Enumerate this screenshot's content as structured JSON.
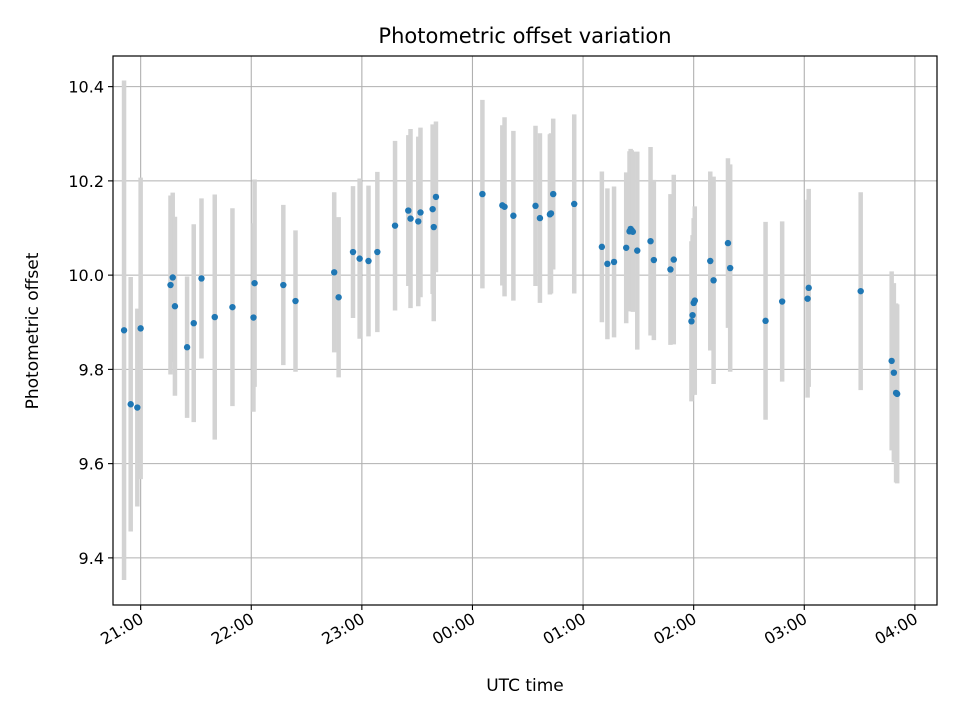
{
  "chart_data": {
    "type": "scatter",
    "title": "Photometric offset variation",
    "xlabel": "UTC time",
    "ylabel": "Photometric offset",
    "grid": true,
    "legend": "none",
    "xlim_hours": [
      -3.25,
      4.2
    ],
    "ylim": [
      9.3,
      10.465
    ],
    "x_ticks": [
      {
        "hour": -3,
        "label": "21:00"
      },
      {
        "hour": -2,
        "label": "22:00"
      },
      {
        "hour": -1,
        "label": "23:00"
      },
      {
        "hour": 0,
        "label": "00:00"
      },
      {
        "hour": 1,
        "label": "01:00"
      },
      {
        "hour": 2,
        "label": "02:00"
      },
      {
        "hour": 3,
        "label": "03:00"
      },
      {
        "hour": 4,
        "label": "04:00"
      }
    ],
    "y_ticks": [
      {
        "value": 9.4,
        "label": "9.4"
      },
      {
        "value": 9.6,
        "label": "9.6"
      },
      {
        "value": 9.8,
        "label": "9.8"
      },
      {
        "value": 10.0,
        "label": "10.0"
      },
      {
        "value": 10.2,
        "label": "10.2"
      },
      {
        "value": 10.4,
        "label": "10.4"
      }
    ],
    "colors": {
      "point": "#1f77b4",
      "errorbar": "#d3d3d3",
      "grid": "#b0b0b0"
    },
    "x_units": "hours relative to 00:00 UTC (negative = previous evening)",
    "points": [
      {
        "x": -3.15,
        "y": 9.883,
        "err": 0.53
      },
      {
        "x": -3.09,
        "y": 9.726,
        "err": 0.27
      },
      {
        "x": -3.03,
        "y": 9.719,
        "err": 0.21
      },
      {
        "x": -3.0,
        "y": 9.887,
        "err": 0.32
      },
      {
        "x": -2.73,
        "y": 9.979,
        "err": 0.19
      },
      {
        "x": -2.71,
        "y": 9.995,
        "err": 0.18
      },
      {
        "x": -2.69,
        "y": 9.934,
        "err": 0.19
      },
      {
        "x": -2.58,
        "y": 9.847,
        "err": 0.15
      },
      {
        "x": -2.52,
        "y": 9.898,
        "err": 0.21
      },
      {
        "x": -2.45,
        "y": 9.993,
        "err": 0.17
      },
      {
        "x": -2.33,
        "y": 9.911,
        "err": 0.26
      },
      {
        "x": -2.17,
        "y": 9.932,
        "err": 0.21
      },
      {
        "x": -1.98,
        "y": 9.91,
        "err": 0.2
      },
      {
        "x": -1.97,
        "y": 9.983,
        "err": 0.22
      },
      {
        "x": -1.71,
        "y": 9.979,
        "err": 0.17
      },
      {
        "x": -1.6,
        "y": 9.945,
        "err": 0.15
      },
      {
        "x": -1.25,
        "y": 10.006,
        "err": 0.17
      },
      {
        "x": -1.21,
        "y": 9.953,
        "err": 0.17
      },
      {
        "x": -1.08,
        "y": 10.049,
        "err": 0.14
      },
      {
        "x": -1.02,
        "y": 10.035,
        "err": 0.17
      },
      {
        "x": -0.94,
        "y": 10.03,
        "err": 0.16
      },
      {
        "x": -0.86,
        "y": 10.049,
        "err": 0.17
      },
      {
        "x": -0.7,
        "y": 10.105,
        "err": 0.18
      },
      {
        "x": -0.58,
        "y": 10.137,
        "err": 0.16
      },
      {
        "x": -0.56,
        "y": 10.12,
        "err": 0.19
      },
      {
        "x": -0.49,
        "y": 10.114,
        "err": 0.18
      },
      {
        "x": -0.47,
        "y": 10.133,
        "err": 0.18
      },
      {
        "x": -0.36,
        "y": 10.14,
        "err": 0.18
      },
      {
        "x": -0.35,
        "y": 10.102,
        "err": 0.2
      },
      {
        "x": -0.33,
        "y": 10.166,
        "err": 0.16
      },
      {
        "x": 0.09,
        "y": 10.172,
        "err": 0.2
      },
      {
        "x": 0.27,
        "y": 10.148,
        "err": 0.17
      },
      {
        "x": 0.29,
        "y": 10.145,
        "err": 0.19
      },
      {
        "x": 0.37,
        "y": 10.126,
        "err": 0.18
      },
      {
        "x": 0.57,
        "y": 10.147,
        "err": 0.17
      },
      {
        "x": 0.61,
        "y": 10.121,
        "err": 0.18
      },
      {
        "x": 0.7,
        "y": 10.129,
        "err": 0.17
      },
      {
        "x": 0.71,
        "y": 10.131,
        "err": 0.17
      },
      {
        "x": 0.73,
        "y": 10.172,
        "err": 0.16
      },
      {
        "x": 0.92,
        "y": 10.151,
        "err": 0.19
      },
      {
        "x": 1.17,
        "y": 10.06,
        "err": 0.16
      },
      {
        "x": 1.22,
        "y": 10.024,
        "err": 0.16
      },
      {
        "x": 1.28,
        "y": 10.028,
        "err": 0.16
      },
      {
        "x": 1.39,
        "y": 10.058,
        "err": 0.16
      },
      {
        "x": 1.42,
        "y": 10.093,
        "err": 0.17
      },
      {
        "x": 1.43,
        "y": 10.098,
        "err": 0.17
      },
      {
        "x": 1.44,
        "y": 10.095,
        "err": 0.17
      },
      {
        "x": 1.45,
        "y": 10.092,
        "err": 0.17
      },
      {
        "x": 1.49,
        "y": 10.052,
        "err": 0.21
      },
      {
        "x": 1.61,
        "y": 10.072,
        "err": 0.2
      },
      {
        "x": 1.64,
        "y": 10.032,
        "err": 0.17
      },
      {
        "x": 1.79,
        "y": 10.012,
        "err": 0.16
      },
      {
        "x": 1.82,
        "y": 10.033,
        "err": 0.18
      },
      {
        "x": 1.98,
        "y": 9.902,
        "err": 0.17
      },
      {
        "x": 1.99,
        "y": 9.915,
        "err": 0.17
      },
      {
        "x": 2.0,
        "y": 9.941,
        "err": 0.18
      },
      {
        "x": 2.01,
        "y": 9.946,
        "err": 0.2
      },
      {
        "x": 2.15,
        "y": 10.03,
        "err": 0.19
      },
      {
        "x": 2.18,
        "y": 9.989,
        "err": 0.22
      },
      {
        "x": 2.31,
        "y": 10.068,
        "err": 0.18
      },
      {
        "x": 2.33,
        "y": 10.015,
        "err": 0.22
      },
      {
        "x": 2.65,
        "y": 9.903,
        "err": 0.21
      },
      {
        "x": 2.8,
        "y": 9.944,
        "err": 0.17
      },
      {
        "x": 3.03,
        "y": 9.95,
        "err": 0.21
      },
      {
        "x": 3.04,
        "y": 9.973,
        "err": 0.21
      },
      {
        "x": 3.51,
        "y": 9.966,
        "err": 0.21
      },
      {
        "x": 3.79,
        "y": 9.818,
        "err": 0.19
      },
      {
        "x": 3.81,
        "y": 9.793,
        "err": 0.19
      },
      {
        "x": 3.83,
        "y": 9.75,
        "err": 0.19
      },
      {
        "x": 3.84,
        "y": 9.748,
        "err": 0.19
      }
    ]
  }
}
